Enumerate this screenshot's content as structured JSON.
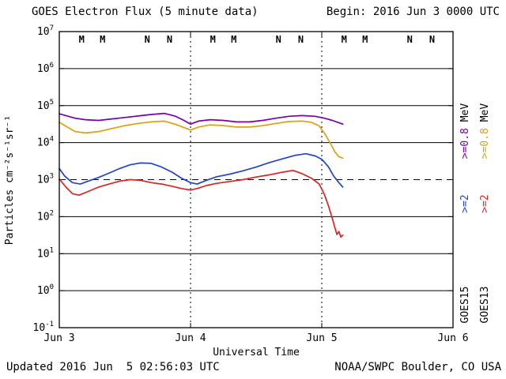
{
  "header": {
    "title": "GOES Electron Flux (5 minute data)",
    "begin": "Begin: 2016 Jun 3 0000 UTC"
  },
  "footer": {
    "updated": "Updated 2016 Jun  5 02:56:03 UTC",
    "source": "NOAA/SWPC Boulder, CO USA"
  },
  "chart_data": {
    "type": "line",
    "title": "GOES Electron Flux (5 minute data)",
    "xlabel": "Universal Time",
    "ylabel": "Particles cm⁻²s⁻¹sr⁻¹",
    "x_axis": {
      "range_days": [
        0,
        3
      ],
      "tick_labels": [
        "Jun 3",
        "Jun 4",
        "Jun 5",
        "Jun 6"
      ],
      "day_boundaries": [
        1,
        2
      ]
    },
    "y_axis": {
      "log_range": [
        -1,
        7
      ],
      "tick_exponents": [
        7,
        6,
        5,
        4,
        3,
        2,
        1,
        0,
        -1
      ]
    },
    "threshold": {
      "log10": 3,
      "value": 1000
    },
    "series": [
      {
        "name": "GOES15 >=0.8 MeV",
        "color": "#7700aa",
        "points": [
          [
            0.0,
            4.78
          ],
          [
            0.06,
            4.72
          ],
          [
            0.12,
            4.66
          ],
          [
            0.2,
            4.62
          ],
          [
            0.3,
            4.6
          ],
          [
            0.4,
            4.64
          ],
          [
            0.5,
            4.68
          ],
          [
            0.6,
            4.72
          ],
          [
            0.7,
            4.76
          ],
          [
            0.8,
            4.79
          ],
          [
            0.88,
            4.72
          ],
          [
            0.94,
            4.62
          ],
          [
            1.0,
            4.5
          ],
          [
            1.06,
            4.58
          ],
          [
            1.15,
            4.62
          ],
          [
            1.25,
            4.6
          ],
          [
            1.35,
            4.56
          ],
          [
            1.45,
            4.56
          ],
          [
            1.55,
            4.6
          ],
          [
            1.65,
            4.66
          ],
          [
            1.75,
            4.71
          ],
          [
            1.85,
            4.73
          ],
          [
            1.95,
            4.71
          ],
          [
            2.02,
            4.66
          ],
          [
            2.08,
            4.6
          ],
          [
            2.12,
            4.55
          ],
          [
            2.16,
            4.5
          ]
        ]
      },
      {
        "name": "GOES13 >=0.8 MeV",
        "color": "#e0a010",
        "points": [
          [
            0.0,
            4.55
          ],
          [
            0.06,
            4.42
          ],
          [
            0.12,
            4.3
          ],
          [
            0.2,
            4.26
          ],
          [
            0.3,
            4.3
          ],
          [
            0.4,
            4.38
          ],
          [
            0.5,
            4.46
          ],
          [
            0.6,
            4.52
          ],
          [
            0.7,
            4.56
          ],
          [
            0.8,
            4.58
          ],
          [
            0.88,
            4.5
          ],
          [
            0.94,
            4.42
          ],
          [
            1.0,
            4.34
          ],
          [
            1.06,
            4.42
          ],
          [
            1.15,
            4.48
          ],
          [
            1.25,
            4.46
          ],
          [
            1.35,
            4.42
          ],
          [
            1.45,
            4.42
          ],
          [
            1.55,
            4.46
          ],
          [
            1.65,
            4.52
          ],
          [
            1.75,
            4.57
          ],
          [
            1.85,
            4.58
          ],
          [
            1.92,
            4.55
          ],
          [
            1.98,
            4.45
          ],
          [
            2.03,
            4.2
          ],
          [
            2.07,
            3.95
          ],
          [
            2.1,
            3.75
          ],
          [
            2.13,
            3.62
          ],
          [
            2.16,
            3.58
          ]
        ]
      },
      {
        "name": "GOES15 >=2 MeV",
        "color": "#2244cc",
        "points": [
          [
            0.0,
            3.3
          ],
          [
            0.04,
            3.1
          ],
          [
            0.1,
            2.92
          ],
          [
            0.16,
            2.88
          ],
          [
            0.22,
            2.96
          ],
          [
            0.3,
            3.06
          ],
          [
            0.38,
            3.18
          ],
          [
            0.46,
            3.3
          ],
          [
            0.54,
            3.4
          ],
          [
            0.62,
            3.45
          ],
          [
            0.7,
            3.44
          ],
          [
            0.78,
            3.34
          ],
          [
            0.86,
            3.2
          ],
          [
            0.93,
            3.04
          ],
          [
            1.0,
            2.92
          ],
          [
            1.05,
            2.88
          ],
          [
            1.12,
            2.98
          ],
          [
            1.2,
            3.08
          ],
          [
            1.3,
            3.15
          ],
          [
            1.4,
            3.24
          ],
          [
            1.5,
            3.34
          ],
          [
            1.6,
            3.46
          ],
          [
            1.7,
            3.56
          ],
          [
            1.8,
            3.66
          ],
          [
            1.88,
            3.7
          ],
          [
            1.95,
            3.64
          ],
          [
            2.0,
            3.55
          ],
          [
            2.05,
            3.35
          ],
          [
            2.09,
            3.1
          ],
          [
            2.13,
            2.92
          ],
          [
            2.16,
            2.8
          ]
        ]
      },
      {
        "name": "GOES13 >=2 MeV",
        "color": "#dd2222",
        "points": [
          [
            0.0,
            3.02
          ],
          [
            0.05,
            2.8
          ],
          [
            0.1,
            2.62
          ],
          [
            0.15,
            2.58
          ],
          [
            0.22,
            2.68
          ],
          [
            0.3,
            2.8
          ],
          [
            0.38,
            2.88
          ],
          [
            0.46,
            2.96
          ],
          [
            0.54,
            3.0
          ],
          [
            0.62,
            2.98
          ],
          [
            0.7,
            2.92
          ],
          [
            0.78,
            2.88
          ],
          [
            0.86,
            2.82
          ],
          [
            0.93,
            2.76
          ],
          [
            1.0,
            2.72
          ],
          [
            1.05,
            2.76
          ],
          [
            1.12,
            2.84
          ],
          [
            1.2,
            2.9
          ],
          [
            1.3,
            2.95
          ],
          [
            1.4,
            3.0
          ],
          [
            1.5,
            3.07
          ],
          [
            1.6,
            3.13
          ],
          [
            1.7,
            3.2
          ],
          [
            1.78,
            3.25
          ],
          [
            1.85,
            3.16
          ],
          [
            1.92,
            3.04
          ],
          [
            1.98,
            2.88
          ],
          [
            2.02,
            2.6
          ],
          [
            2.05,
            2.3
          ],
          [
            2.08,
            1.95
          ],
          [
            2.1,
            1.7
          ],
          [
            2.115,
            1.52
          ],
          [
            2.13,
            1.6
          ],
          [
            2.145,
            1.45
          ],
          [
            2.16,
            1.5
          ]
        ]
      }
    ],
    "top_markers": [
      {
        "x_day": 0.17,
        "label": "M",
        "color": "#cc1111"
      },
      {
        "x_day": 0.33,
        "label": "M",
        "color": "#2233bb"
      },
      {
        "x_day": 0.67,
        "label": "N",
        "color": "#cc1111"
      },
      {
        "x_day": 0.84,
        "label": "N",
        "color": "#2233bb"
      },
      {
        "x_day": 1.17,
        "label": "M",
        "color": "#cc1111"
      },
      {
        "x_day": 1.33,
        "label": "M",
        "color": "#2233bb"
      },
      {
        "x_day": 1.67,
        "label": "N",
        "color": "#cc1111"
      },
      {
        "x_day": 1.84,
        "label": "N",
        "color": "#2233bb"
      },
      {
        "x_day": 2.17,
        "label": "M",
        "color": "#cc1111"
      },
      {
        "x_day": 2.33,
        "label": "M",
        "color": "#2233bb"
      },
      {
        "x_day": 2.67,
        "label": "N",
        "color": "#cc1111"
      },
      {
        "x_day": 2.84,
        "label": "N",
        "color": "#2233bb"
      }
    ],
    "right_legend": [
      {
        "x": 592,
        "items": [
          {
            "y": 166,
            "segments": [
              {
                "text": ">=0.8 ",
                "color": "#7700aa"
              },
              {
                "text": "MeV",
                "color": "#000000"
              }
            ]
          },
          {
            "y": 258,
            "segments": [
              {
                "text": ">=2",
                "color": "#2244cc"
              }
            ]
          },
          {
            "y": 386,
            "segments": [
              {
                "text": "GOES15",
                "color": "#000000"
              }
            ]
          }
        ]
      },
      {
        "x": 617,
        "items": [
          {
            "y": 166,
            "segments": [
              {
                "text": ">=0.8 ",
                "color": "#e0a010"
              },
              {
                "text": "MeV",
                "color": "#000000"
              }
            ]
          },
          {
            "y": 258,
            "segments": [
              {
                "text": ">=2",
                "color": "#dd2222"
              }
            ]
          },
          {
            "y": 386,
            "segments": [
              {
                "text": "GOES13",
                "color": "#000000"
              }
            ]
          }
        ]
      }
    ]
  }
}
